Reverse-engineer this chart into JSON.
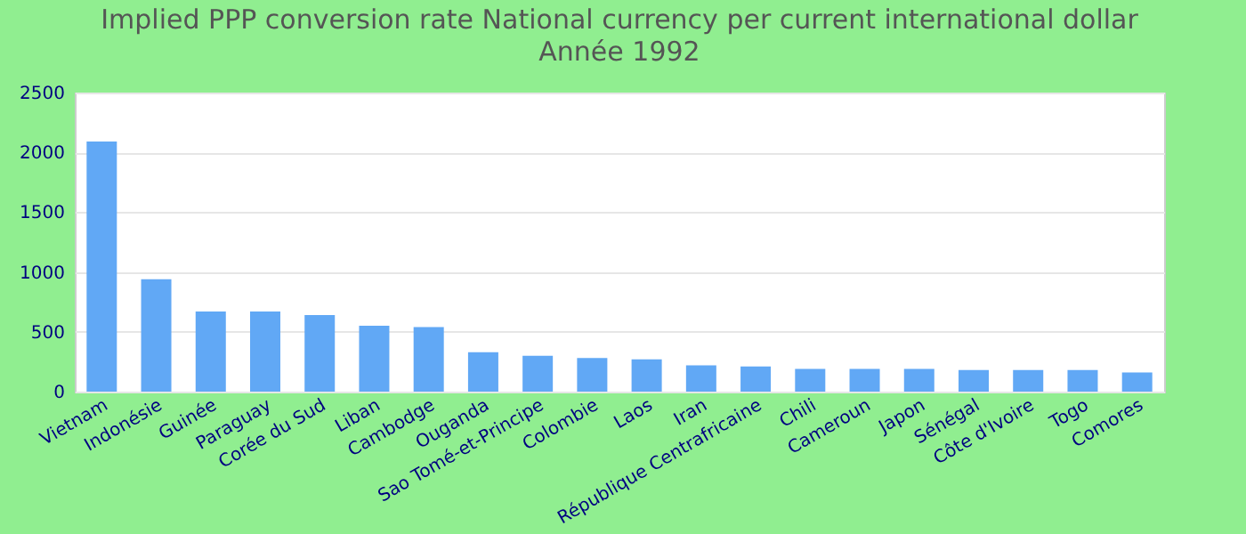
{
  "chart_data": {
    "type": "bar",
    "title": "Implied PPP conversion rate  National currency per current international dollar",
    "subtitle": "Année 1992",
    "categories": [
      "Vietnam",
      "Indonésie",
      "Guinée",
      "Paraguay",
      "Corée du Sud",
      "Liban",
      "Cambodge",
      "Ouganda",
      "Sao Tomé-et-Principe",
      "Colombie",
      "Laos",
      "Iran",
      "République Centrafricaine",
      "Chili",
      "Cameroun",
      "Japon",
      "Sénégal",
      "Côte d'Ivoire",
      "Togo",
      "Comores"
    ],
    "values": [
      2090,
      940,
      670,
      670,
      640,
      550,
      540,
      330,
      300,
      280,
      270,
      220,
      210,
      190,
      190,
      190,
      180,
      180,
      180,
      160
    ],
    "color": "#61a8f5",
    "ylim": [
      0,
      2500
    ],
    "yticks": [
      0,
      500,
      1000,
      1500,
      2000,
      2500
    ],
    "grid": "y"
  }
}
